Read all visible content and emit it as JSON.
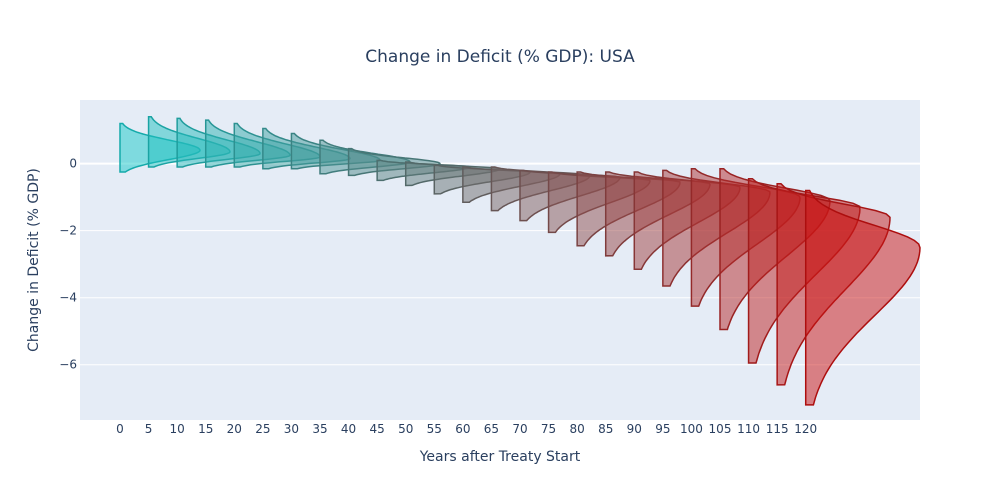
{
  "chart_data": {
    "type": "violin",
    "title": "Change in Deficit (% GDP): USA",
    "xlabel": "Years after Treaty Start",
    "ylabel": "Change in Deficit (% GDP)",
    "xlim": [
      -7,
      140
    ],
    "ylim": [
      -7.65,
      1.9
    ],
    "x_ticks": [
      0,
      5,
      10,
      15,
      20,
      25,
      30,
      35,
      40,
      45,
      50,
      55,
      60,
      65,
      70,
      75,
      80,
      85,
      90,
      95,
      100,
      105,
      110,
      115,
      120
    ],
    "y_ticks": [
      0,
      -2,
      -4,
      -6
    ],
    "plot_background": "#e5ecf6",
    "grid": true,
    "side": "positive (right half)",
    "color_start": "#17c8c8",
    "color_end": "#cc1111",
    "series": [
      {
        "x": 0,
        "max": 1.2,
        "peak": 0.4,
        "min": -0.25
      },
      {
        "x": 5,
        "max": 1.4,
        "peak": 0.35,
        "min": -0.1
      },
      {
        "x": 10,
        "max": 1.35,
        "peak": 0.3,
        "min": -0.1
      },
      {
        "x": 15,
        "max": 1.3,
        "peak": 0.25,
        "min": -0.1
      },
      {
        "x": 20,
        "max": 1.2,
        "peak": 0.2,
        "min": -0.1
      },
      {
        "x": 25,
        "max": 1.05,
        "peak": 0.15,
        "min": -0.15
      },
      {
        "x": 30,
        "max": 0.9,
        "peak": 0.1,
        "min": -0.15
      },
      {
        "x": 35,
        "max": 0.7,
        "peak": 0.05,
        "min": -0.3
      },
      {
        "x": 40,
        "max": 0.45,
        "peak": 0.0,
        "min": -0.35
      },
      {
        "x": 45,
        "max": 0.1,
        "peak": -0.1,
        "min": -0.5
      },
      {
        "x": 50,
        "max": 0.05,
        "peak": -0.15,
        "min": -0.65
      },
      {
        "x": 55,
        "max": -0.05,
        "peak": -0.25,
        "min": -0.9
      },
      {
        "x": 60,
        "max": -0.1,
        "peak": -0.3,
        "min": -1.15
      },
      {
        "x": 65,
        "max": -0.1,
        "peak": -0.35,
        "min": -1.4
      },
      {
        "x": 70,
        "max": -0.2,
        "peak": -0.4,
        "min": -1.7
      },
      {
        "x": 75,
        "max": -0.25,
        "peak": -0.5,
        "min": -2.05
      },
      {
        "x": 80,
        "max": -0.25,
        "peak": -0.55,
        "min": -2.45
      },
      {
        "x": 85,
        "max": -0.25,
        "peak": -0.6,
        "min": -2.75
      },
      {
        "x": 90,
        "max": -0.25,
        "peak": -0.7,
        "min": -3.15
      },
      {
        "x": 95,
        "max": -0.2,
        "peak": -0.85,
        "min": -3.65
      },
      {
        "x": 100,
        "max": -0.15,
        "peak": -1.0,
        "min": -4.25
      },
      {
        "x": 105,
        "max": -0.15,
        "peak": -1.1,
        "min": -4.95
      },
      {
        "x": 110,
        "max": -0.45,
        "peak": -1.3,
        "min": -5.95
      },
      {
        "x": 115,
        "max": -0.6,
        "peak": -1.6,
        "min": -6.6
      },
      {
        "x": 120,
        "max": -0.8,
        "peak": -2.5,
        "min": -7.2
      }
    ]
  }
}
